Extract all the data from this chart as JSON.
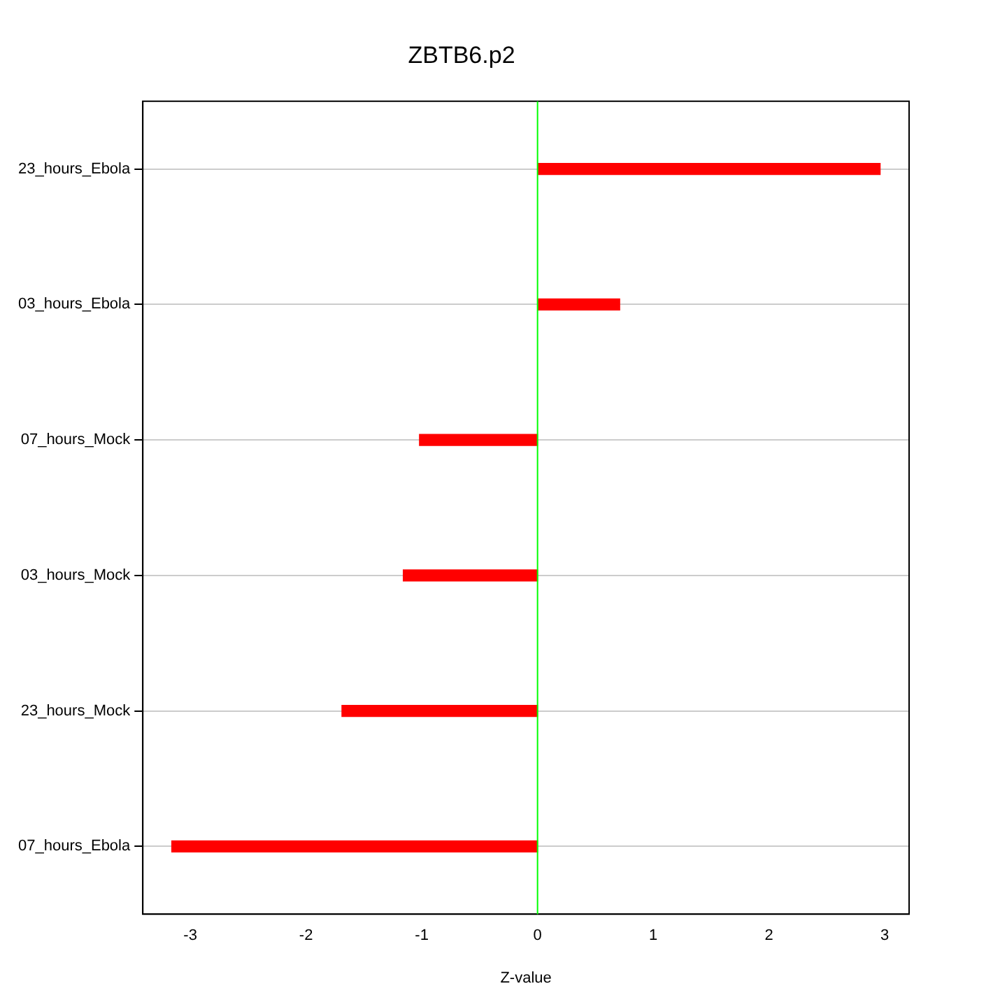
{
  "chart_data": {
    "type": "bar",
    "orientation": "horizontal",
    "title": "ZBTB6.p2",
    "xlabel": "Z-value",
    "categories": [
      "23_hours_Ebola",
      "03_hours_Ebola",
      "07_hours_Mock",
      "03_hours_Mock",
      "23_hours_Mock",
      "07_hours_Ebola"
    ],
    "values": [
      2.96,
      0.71,
      -1.02,
      -1.16,
      -1.69,
      -3.16
    ],
    "color": "#ff0000",
    "xlim": [
      -3.41,
      3.21
    ],
    "xticks": [
      -3,
      -2,
      -1,
      0,
      1,
      2,
      3
    ],
    "grid": "y",
    "legend": false,
    "ref_lines": [
      {
        "axis": "x",
        "value": 0,
        "color": "#00ff00"
      }
    ]
  }
}
